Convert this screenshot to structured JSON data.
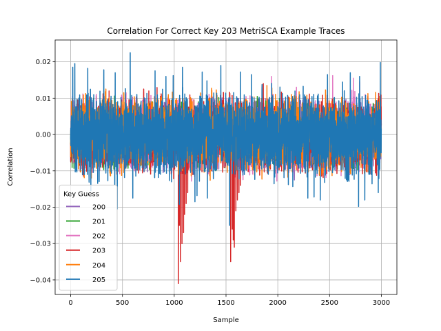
{
  "chart_data": {
    "type": "line",
    "title": "Correlation For Correct Key 203 MetriSCA Example Traces",
    "xlabel": "Sample",
    "ylabel": "Correlation",
    "xlim": [
      -150,
      3150
    ],
    "ylim": [
      -0.044,
      0.026
    ],
    "xticks": [
      0,
      500,
      1000,
      1500,
      2000,
      2500,
      3000
    ],
    "xtick_labels": [
      "0",
      "500",
      "1000",
      "1500",
      "2000",
      "2500",
      "3000"
    ],
    "yticks": [
      0.02,
      0.01,
      0.0,
      -0.01,
      -0.02,
      -0.03,
      -0.04
    ],
    "ytick_labels": [
      "0.02",
      "0.01",
      "0.00",
      "−0.01",
      "−0.02",
      "−0.03",
      "−0.04"
    ],
    "grid": true,
    "legend": {
      "title": "Key Guess",
      "placement": "lower-left"
    },
    "n_samples": 3000,
    "series": [
      {
        "name": "200",
        "color": "#9467bd",
        "base_amp": 0.0085,
        "peaks": [
          [
            1955,
            0.011
          ],
          [
            2160,
            -0.0125
          ]
        ]
      },
      {
        "name": "201",
        "color": "#2ca02c",
        "base_amp": 0.008,
        "peaks": [
          [
            2130,
            -0.009
          ]
        ]
      },
      {
        "name": "202",
        "color": "#e377c2",
        "base_amp": 0.0095,
        "peaks": [
          [
            1940,
            0.016
          ],
          [
            2530,
            0.0162
          ],
          [
            2730,
            0.0155
          ],
          [
            2790,
            0.0145
          ],
          [
            2180,
            0.013
          ]
        ]
      },
      {
        "name": "203",
        "color": "#d62728",
        "base_amp": 0.0095,
        "peaks": [
          [
            1040,
            -0.041
          ],
          [
            1060,
            -0.035
          ],
          [
            1075,
            -0.03
          ],
          [
            1090,
            -0.027
          ],
          [
            1100,
            -0.022
          ],
          [
            1115,
            -0.019
          ],
          [
            1050,
            -0.025
          ],
          [
            1130,
            -0.016
          ],
          [
            1545,
            -0.035
          ],
          [
            1560,
            -0.026
          ],
          [
            1570,
            -0.029
          ],
          [
            1580,
            -0.031
          ],
          [
            1595,
            -0.021
          ],
          [
            1610,
            -0.018
          ],
          [
            1625,
            -0.016
          ],
          [
            1640,
            -0.014
          ],
          [
            705,
            0.0125
          ],
          [
            1860,
            0.014
          ]
        ]
      },
      {
        "name": "204",
        "color": "#ff7f0e",
        "base_amp": 0.0095,
        "peaks": [
          [
            1895,
            0.0135
          ],
          [
            1915,
            -0.01
          ],
          [
            340,
            0.0125
          ]
        ]
      },
      {
        "name": "205",
        "color": "#1f77b4",
        "base_amp": 0.011,
        "peaks": [
          [
            575,
            0.0225
          ],
          [
            20,
            0.0185
          ],
          [
            40,
            0.0195
          ],
          [
            165,
            0.0182
          ],
          [
            320,
            0.0178
          ],
          [
            430,
            0.017
          ],
          [
            815,
            0.0175
          ],
          [
            920,
            0.016
          ],
          [
            990,
            0.0162
          ],
          [
            1080,
            0.0185
          ],
          [
            1270,
            0.0172
          ],
          [
            1450,
            0.019
          ],
          [
            1640,
            0.0172
          ],
          [
            1745,
            0.0165
          ],
          [
            2480,
            0.0165
          ],
          [
            2700,
            0.017
          ],
          [
            2790,
            0.016
          ],
          [
            2990,
            0.0198
          ],
          [
            450,
            -0.0205
          ],
          [
            600,
            -0.0175
          ],
          [
            1050,
            -0.0192
          ],
          [
            1320,
            -0.0175
          ],
          [
            1535,
            -0.025
          ],
          [
            2290,
            -0.0175
          ],
          [
            2410,
            -0.018
          ],
          [
            2780,
            -0.0198
          ],
          [
            2840,
            -0.018
          ],
          [
            195,
            -0.0155
          ],
          [
            2970,
            -0.016
          ],
          [
            1220,
            -0.0168
          ],
          [
            2350,
            -0.0172
          ],
          [
            1200,
            -0.0185
          ]
        ]
      }
    ]
  }
}
